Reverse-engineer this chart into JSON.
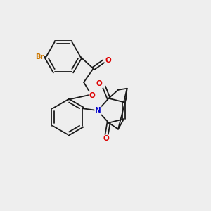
{
  "background_color": "#eeeeee",
  "bond_color": "#1a1a1a",
  "atom_colors": {
    "Br": "#cc7700",
    "O": "#dd0000",
    "N": "#0000cc"
  },
  "figsize": [
    3.0,
    3.0
  ],
  "dpi": 100
}
